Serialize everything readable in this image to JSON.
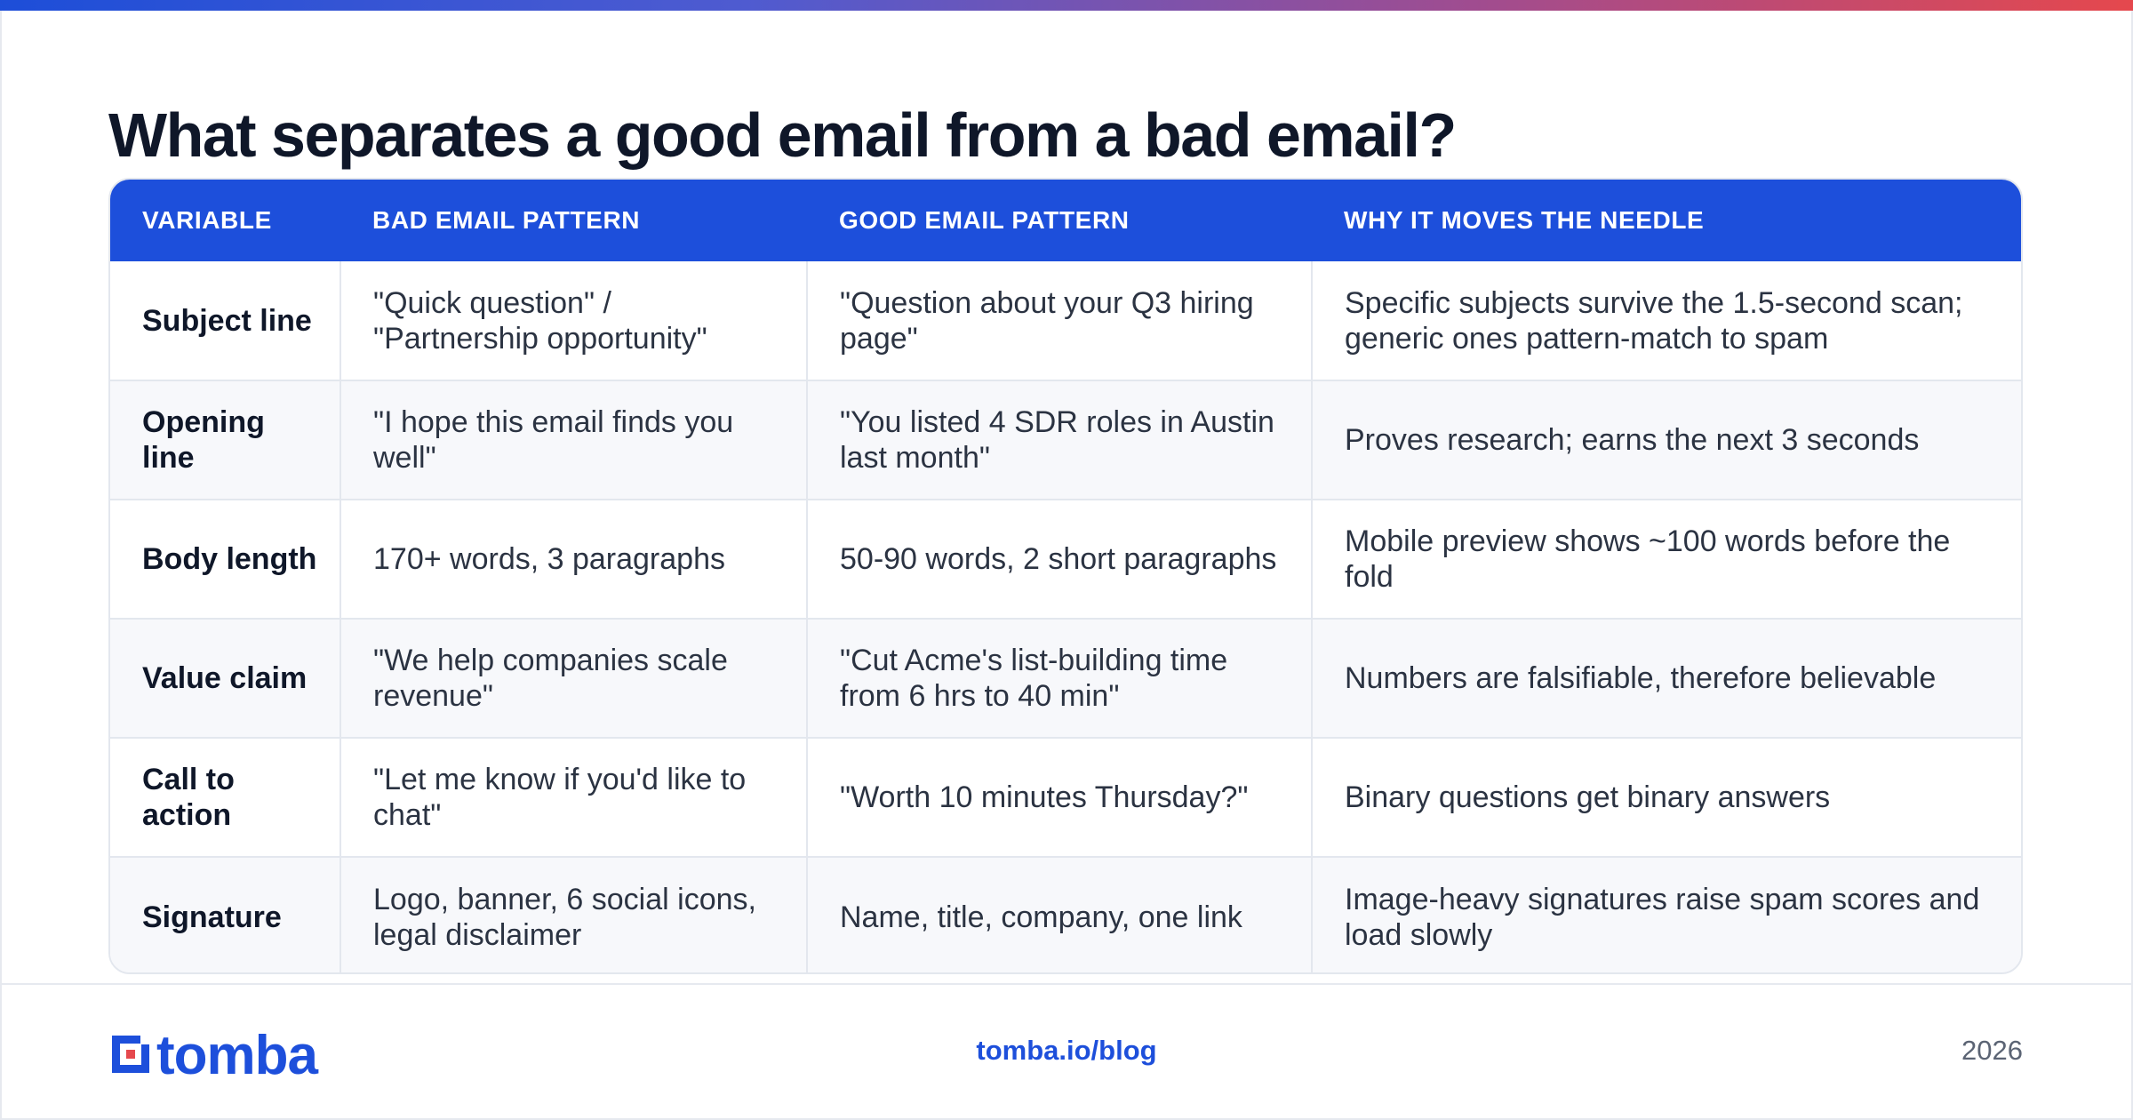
{
  "title": "What separates a good email from a bad email?",
  "table": {
    "headers": [
      "VARIABLE",
      "BAD EMAIL PATTERN",
      "GOOD EMAIL PATTERN",
      "WHY IT MOVES THE NEEDLE"
    ],
    "rows": [
      [
        "Subject line",
        "\"Quick question\" / \"Partnership opportunity\"",
        "\"Question about your Q3 hiring page\"",
        "Specific subjects survive the 1.5-second scan; generic ones pattern-match to spam"
      ],
      [
        "Opening line",
        "\"I hope this email finds you well\"",
        "\"You listed 4 SDR roles in Austin last month\"",
        "Proves research; earns the next 3 seconds"
      ],
      [
        "Body length",
        "170+ words, 3 paragraphs",
        "50-90 words, 2 short paragraphs",
        "Mobile preview shows ~100 words before the fold"
      ],
      [
        "Value claim",
        "\"We help companies scale revenue\"",
        "\"Cut Acme's list-building time from 6 hrs to 40 min\"",
        "Numbers are falsifiable, therefore believable"
      ],
      [
        "Call to action",
        "\"Let me know if you'd like to chat\"",
        "\"Worth 10 minutes Thursday?\"",
        "Binary questions get binary answers"
      ],
      [
        "Signature",
        "Logo, banner, 6 social icons, legal disclaimer",
        "Name, title, company, one link",
        "Image-heavy signatures raise spam scores and load slowly"
      ]
    ]
  },
  "footer": {
    "logo_text": "tomba",
    "logo_icon": "tomba-logo-icon",
    "link": "tomba.io/blog",
    "year": "2026"
  },
  "colors": {
    "accent": "#1d4fdb",
    "title": "#0f1729",
    "gradient_start": "#1d4ed8",
    "gradient_end": "#e5484d"
  }
}
